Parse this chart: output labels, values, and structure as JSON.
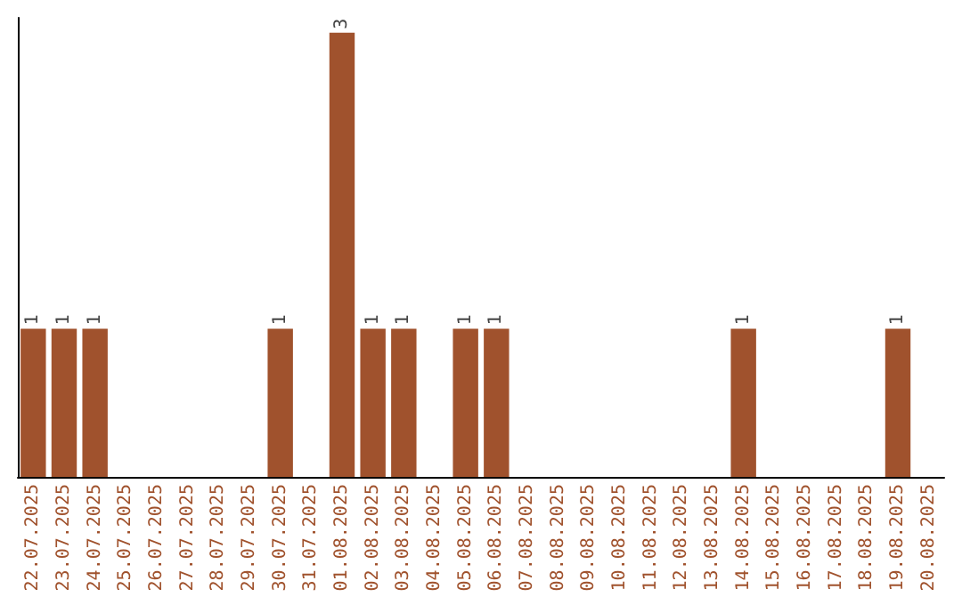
{
  "chart_data": {
    "type": "bar",
    "categories": [
      "22.07.2025",
      "23.07.2025",
      "24.07.2025",
      "25.07.2025",
      "26.07.2025",
      "27.07.2025",
      "28.07.2025",
      "29.07.2025",
      "30.07.2025",
      "31.07.2025",
      "01.08.2025",
      "02.08.2025",
      "03.08.2025",
      "04.08.2025",
      "05.08.2025",
      "06.08.2025",
      "07.08.2025",
      "08.08.2025",
      "09.08.2025",
      "10.08.2025",
      "11.08.2025",
      "12.08.2025",
      "13.08.2025",
      "14.08.2025",
      "15.08.2025",
      "16.08.2025",
      "17.08.2025",
      "18.08.2025",
      "19.08.2025",
      "20.08.2025"
    ],
    "values": [
      1,
      1,
      1,
      0,
      0,
      0,
      0,
      0,
      1,
      0,
      3,
      1,
      1,
      0,
      1,
      1,
      0,
      0,
      0,
      0,
      0,
      0,
      0,
      1,
      0,
      0,
      0,
      0,
      1,
      0
    ],
    "color": "#a0522d",
    "ylim": [
      0,
      3.1
    ],
    "value_labels": [
      "1",
      "1",
      "1",
      null,
      null,
      null,
      null,
      null,
      "1",
      null,
      "3",
      "1",
      "1",
      null,
      "1",
      "1",
      null,
      null,
      null,
      null,
      null,
      null,
      null,
      "1",
      null,
      null,
      null,
      null,
      "1",
      null
    ],
    "tick_labels": "x",
    "grid": false
  }
}
